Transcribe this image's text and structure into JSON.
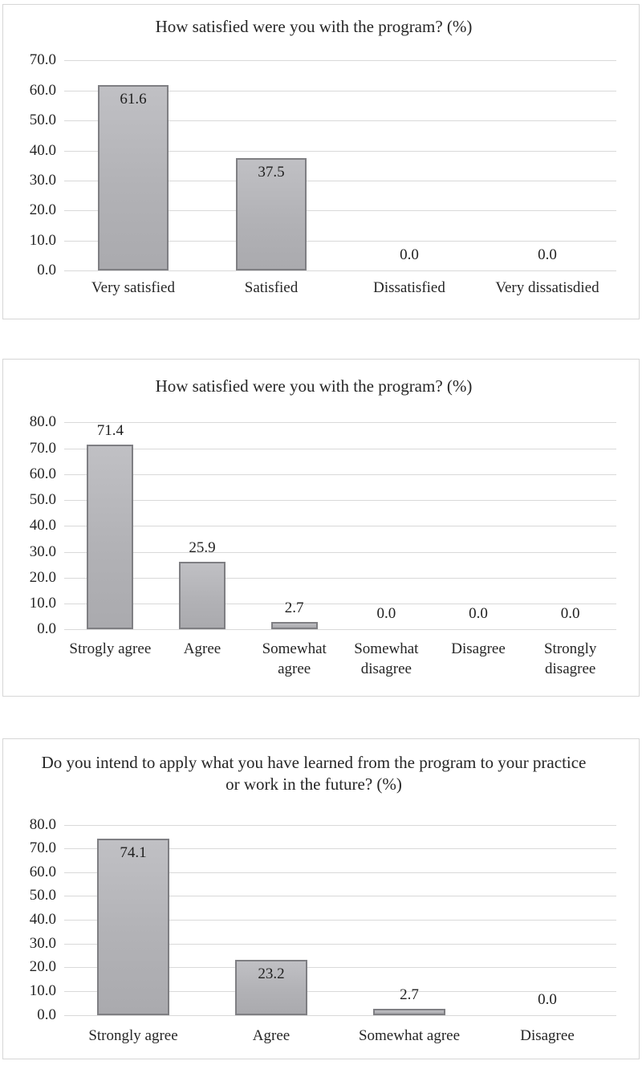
{
  "styles": {
    "bar_fill": "#b4b4b8",
    "bar_border": "#7f7f83",
    "gridline_color": "#d9d9d9",
    "frame_color": "#d6d6d6",
    "text_color": "#262626",
    "background": "#ffffff"
  },
  "chart_data": [
    {
      "type": "bar",
      "title": "How satisfied were you with the program? (%)",
      "categories": [
        "Very satisfied",
        "Satisfied",
        "Dissatisfied",
        "Very dissatisdied"
      ],
      "values": [
        61.6,
        37.5,
        0.0,
        0.0
      ],
      "value_labels": [
        "61.6",
        "37.5",
        "0.0",
        "0.0"
      ],
      "label_mode": "inside-end",
      "xlabel": "",
      "ylabel": "",
      "ylim": [
        0,
        70
      ],
      "ytick_labels": [
        "70.0",
        "60.0",
        "50.0",
        "40.0",
        "30.0",
        "20.0",
        "10.0",
        "0.0"
      ],
      "grid": true,
      "legend": false
    },
    {
      "type": "bar",
      "title": "How satisfied were you with the program? (%)",
      "categories": [
        "Strogly agree",
        "Agree",
        "Somewhat agree",
        "Somewhat disagree",
        "Disagree",
        "Strongly disagree"
      ],
      "values": [
        71.4,
        25.9,
        2.7,
        0.0,
        0.0,
        0.0
      ],
      "value_labels": [
        "71.4",
        "25.9",
        "2.7",
        "0.0",
        "0.0",
        "0.0"
      ],
      "label_mode": "outside-end",
      "xlabel": "",
      "ylabel": "",
      "ylim": [
        0,
        80
      ],
      "ytick_labels": [
        "80.0",
        "70.0",
        "60.0",
        "50.0",
        "40.0",
        "30.0",
        "20.0",
        "10.0",
        "0.0"
      ],
      "grid": true,
      "legend": false
    },
    {
      "type": "bar",
      "title": "Do you intend to apply what you have learned from the program to your practice or work in the future? (%)",
      "categories": [
        "Strongly agree",
        "Agree",
        "Somewhat agree",
        "Disagree"
      ],
      "values": [
        74.1,
        23.2,
        2.7,
        0.0
      ],
      "value_labels": [
        "74.1",
        "23.2",
        "2.7",
        "0.0"
      ],
      "label_mode": "inside-end",
      "xlabel": "",
      "ylabel": "",
      "ylim": [
        0,
        80
      ],
      "ytick_labels": [
        "80.0",
        "70.0",
        "60.0",
        "50.0",
        "40.0",
        "30.0",
        "20.0",
        "10.0",
        "0.0"
      ],
      "grid": true,
      "legend": false
    }
  ]
}
